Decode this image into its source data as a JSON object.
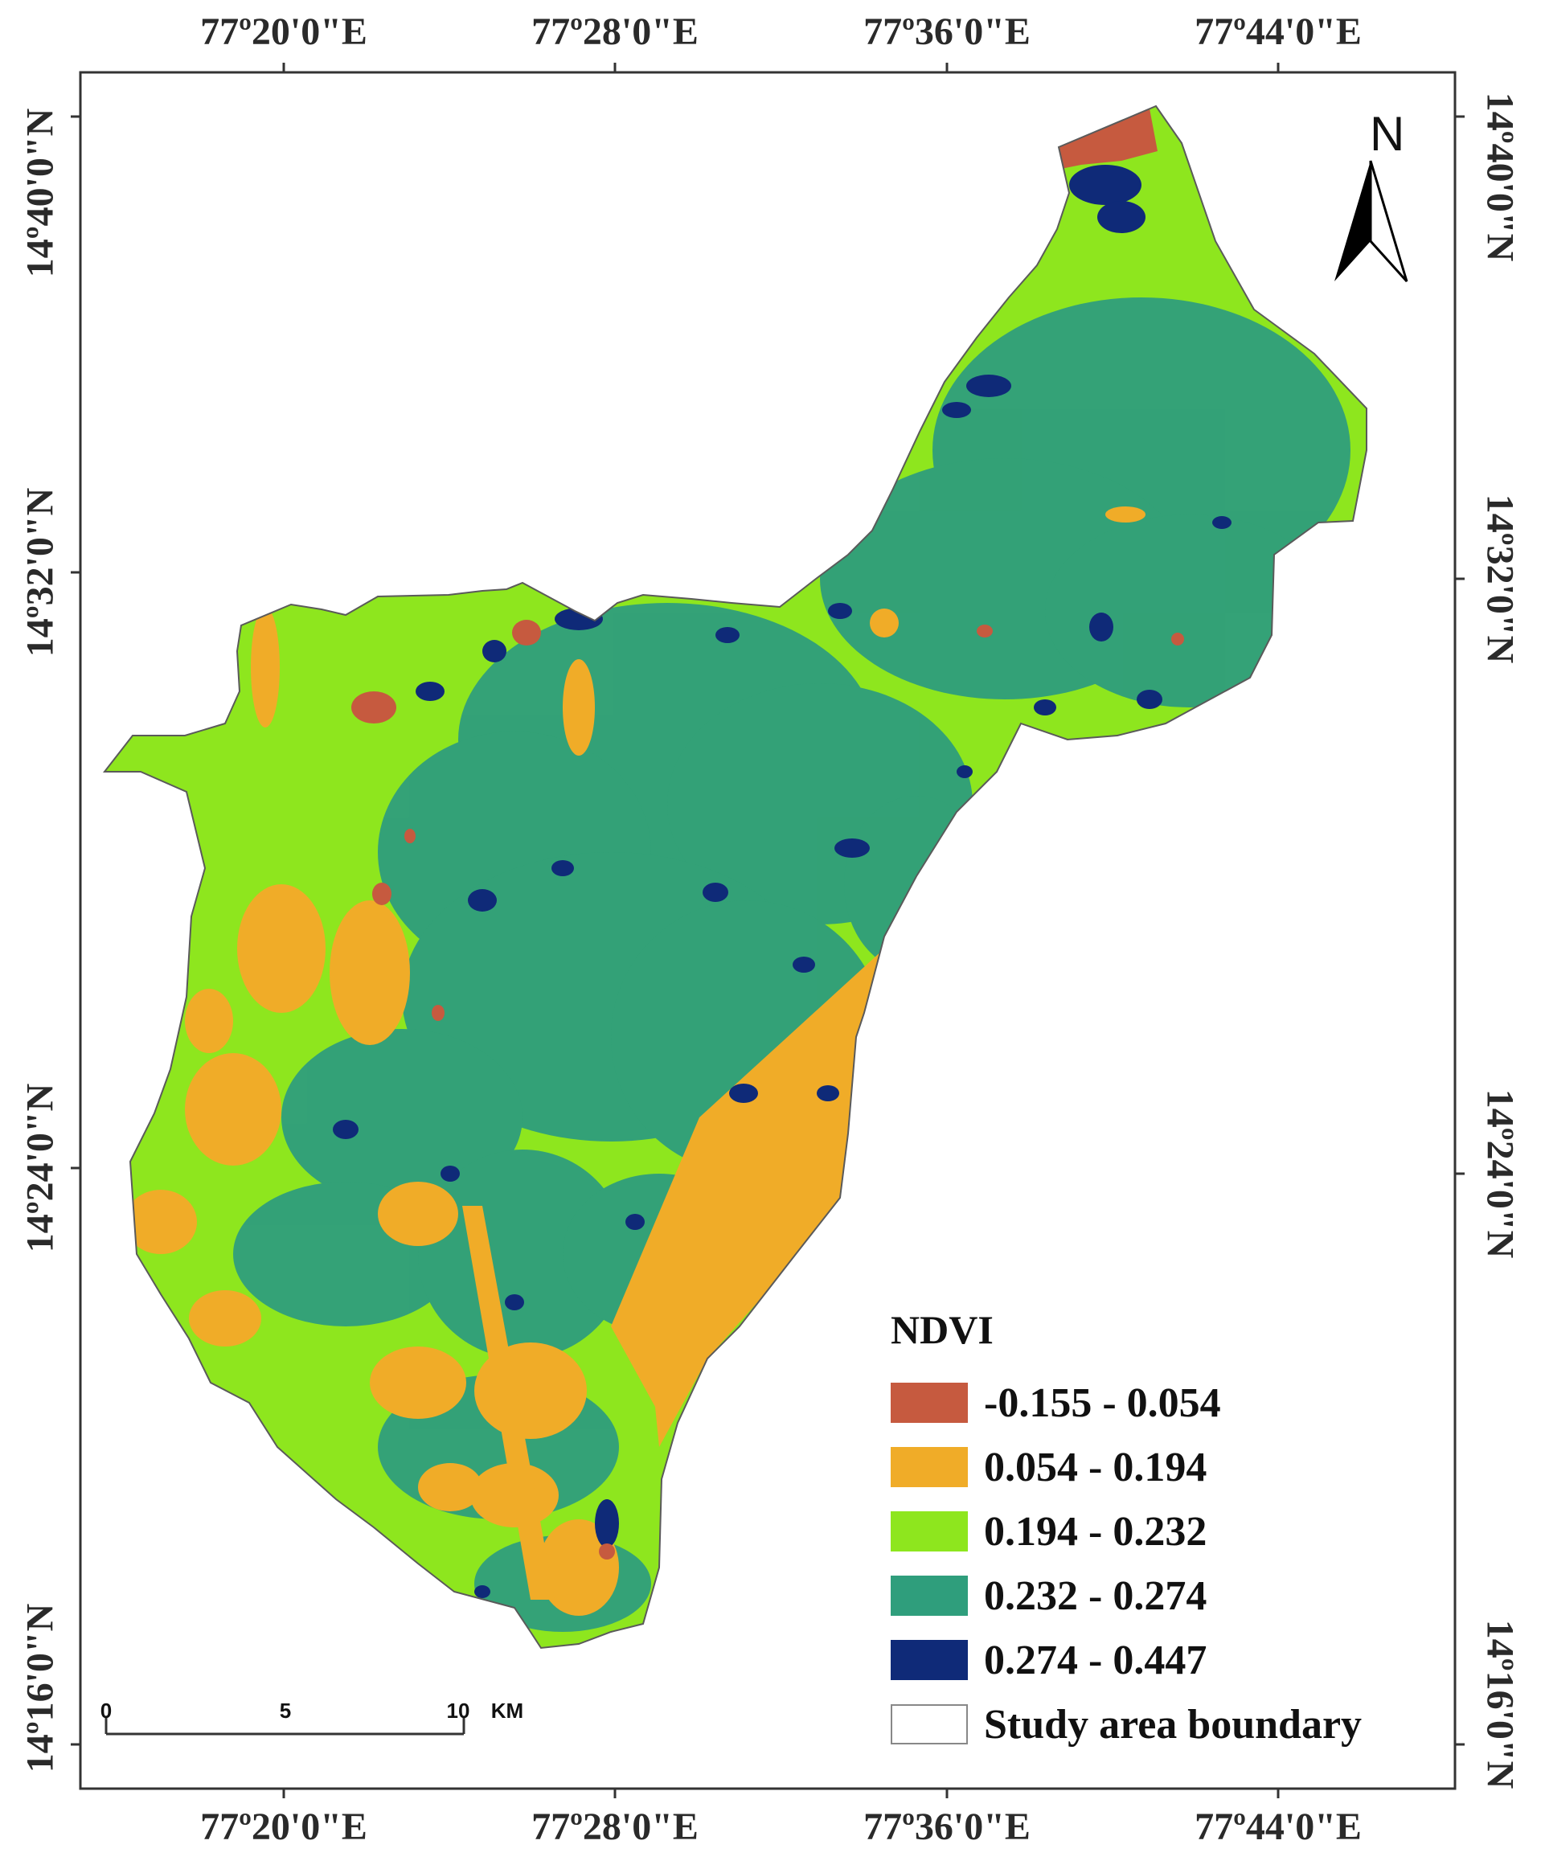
{
  "top_labels": [
    "77º20'0\"E",
    "77º28'0\"E",
    "77º36'0\"E",
    "77º44'0\"E"
  ],
  "bottom_labels": [
    "77º20'0\"E",
    "77º28'0\"E",
    "77º36'0\"E",
    "77º44'0\"E"
  ],
  "left_labels": [
    "14º40'0\"N",
    "14º32'0\"N",
    "14º24'0\"N",
    "14º16'0\"N"
  ],
  "right_labels": [
    "14º40'0\"N",
    "14º32'0\"N",
    "14º24'0\"N",
    "14º16'0\"N"
  ],
  "north_arrow": {
    "letter": "N",
    "icon": "north-arrow-icon"
  },
  "legend": {
    "title": "NDVI",
    "items": [
      {
        "label": "-0.155 - 0.054",
        "color": "#c65a3f"
      },
      {
        "label": "0.054 - 0.194",
        "color": "#f0ac28"
      },
      {
        "label": "0.194 - 0.232",
        "color": "#8ee61e"
      },
      {
        "label": "0.232 - 0.274",
        "color": "#2f9e7c"
      },
      {
        "label": "0.274 - 0.447",
        "color": "#0f2a78"
      },
      {
        "label": "Study area boundary",
        "color": "#ffffff"
      }
    ]
  },
  "scale_bar": {
    "labels": [
      "0",
      "5",
      "10"
    ],
    "unit": "KM"
  }
}
